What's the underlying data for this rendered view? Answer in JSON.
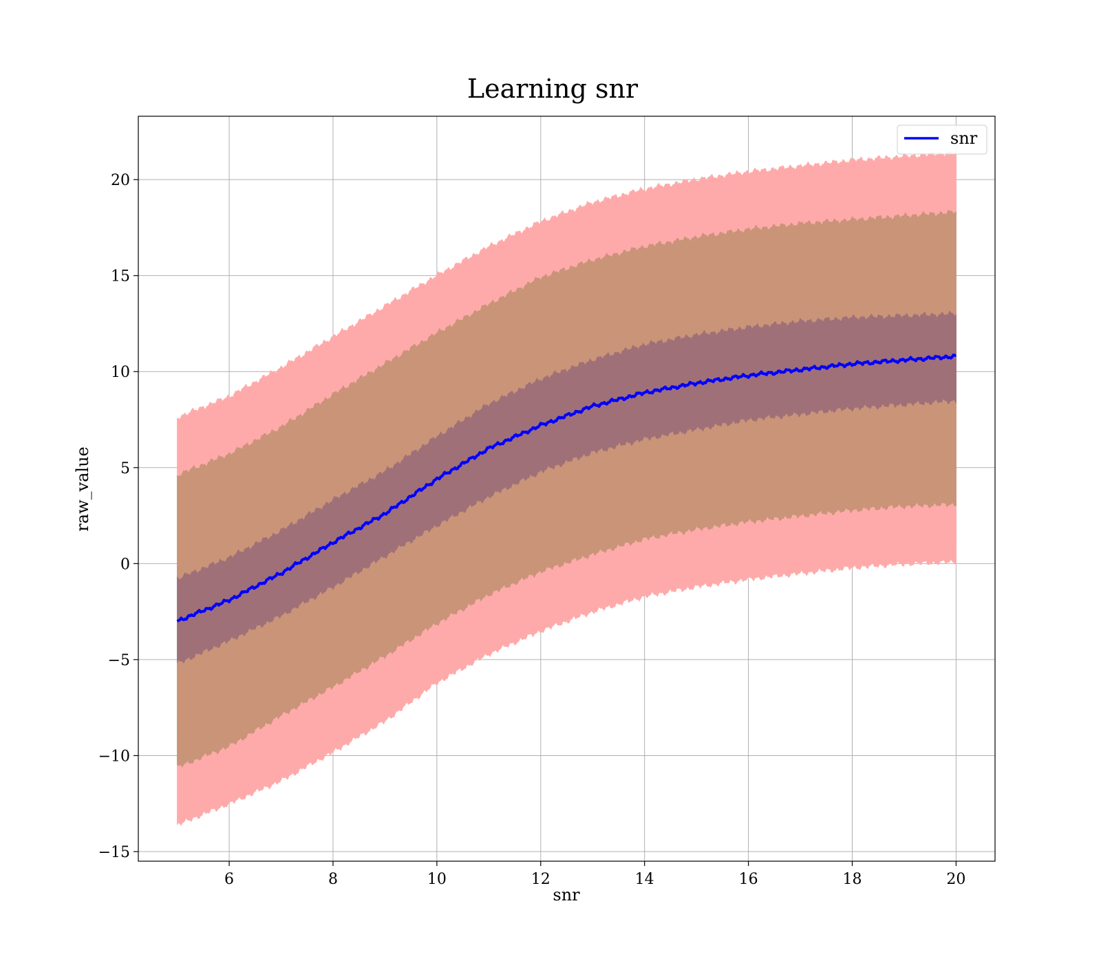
{
  "chart_data": {
    "type": "line",
    "title": "Learning snr",
    "xlabel": "snr",
    "ylabel": "raw_value",
    "xlim": [
      4.25,
      20.75
    ],
    "ylim": [
      -15.5,
      23.3
    ],
    "xticks": [
      6,
      8,
      10,
      12,
      14,
      16,
      18,
      20
    ],
    "yticks": [
      -15,
      -10,
      -5,
      0,
      5,
      10,
      15,
      20
    ],
    "ytick_labels": [
      "−15",
      "−10",
      "−5",
      "0",
      "5",
      "10",
      "15",
      "20"
    ],
    "grid": true,
    "legend": {
      "placement": "top-right",
      "entries": [
        "snr"
      ]
    },
    "x": [
      5,
      6,
      7,
      8,
      9,
      10,
      11,
      12,
      13,
      14,
      15,
      16,
      17,
      18,
      19,
      20
    ],
    "series": [
      {
        "name": "snr",
        "values": [
          -3.0,
          -1.9,
          -0.5,
          1.1,
          2.6,
          4.4,
          6.0,
          7.2,
          8.2,
          8.9,
          9.4,
          9.8,
          10.1,
          10.4,
          10.6,
          10.8
        ]
      }
    ],
    "bands": [
      {
        "lower": [
          -13.6,
          -12.5,
          -11.3,
          -9.8,
          -8.2,
          -6.2,
          -4.7,
          -3.5,
          -2.5,
          -1.7,
          -1.2,
          -0.8,
          -0.5,
          -0.2,
          0.0,
          0.1
        ],
        "upper": [
          7.6,
          8.7,
          10.2,
          11.8,
          13.4,
          15.0,
          16.5,
          17.8,
          18.8,
          19.5,
          20.0,
          20.4,
          20.7,
          21.0,
          21.2,
          21.4
        ],
        "color": "#ffaaaa"
      },
      {
        "lower": [
          -10.6,
          -9.5,
          -7.9,
          -6.4,
          -4.8,
          -3.1,
          -1.6,
          -0.4,
          0.5,
          1.3,
          1.8,
          2.2,
          2.5,
          2.8,
          3.0,
          3.1
        ],
        "upper": [
          4.6,
          5.7,
          7.1,
          8.8,
          10.4,
          12.0,
          13.5,
          14.9,
          15.8,
          16.5,
          17.0,
          17.4,
          17.7,
          17.9,
          18.1,
          18.3
        ],
        "color": "#c99478"
      },
      {
        "lower": [
          -5.2,
          -4.0,
          -2.7,
          -1.2,
          0.4,
          2.0,
          3.5,
          4.8,
          5.8,
          6.5,
          7.0,
          7.5,
          7.8,
          8.1,
          8.3,
          8.5
        ],
        "upper": [
          -0.8,
          0.3,
          1.7,
          3.3,
          4.8,
          6.6,
          8.3,
          9.6,
          10.6,
          11.4,
          11.9,
          12.3,
          12.6,
          12.8,
          12.9,
          13.0
        ],
        "color": "#a07078"
      }
    ],
    "colors": {
      "line": "#0000ff",
      "grid": "#b0b0b0"
    }
  }
}
